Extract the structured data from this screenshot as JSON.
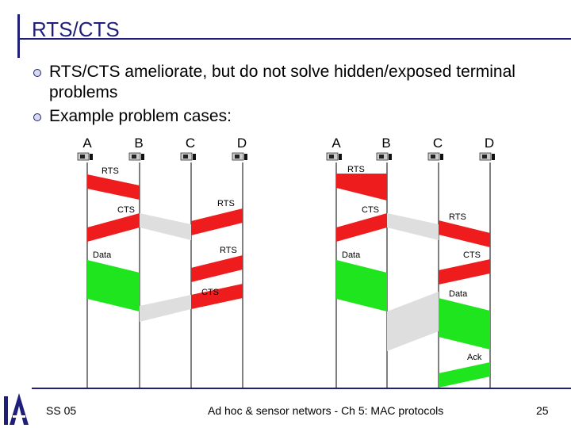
{
  "title": "RTS/CTS",
  "bullets": [
    "RTS/CTS ameliorate, but do not solve hidden/exposed terminal problems",
    "Example problem cases:"
  ],
  "diagram": {
    "nodes": [
      "A",
      "B",
      "C",
      "D"
    ],
    "labels": {
      "rts": "RTS",
      "cts": "CTS",
      "data": "Data",
      "ack": "Ack"
    },
    "colors": {
      "rts": "#ee1c1c",
      "cts_gray": "#dedede",
      "data": "#1ee51e",
      "line": "#000000"
    }
  },
  "footer": {
    "left": "SS 05",
    "center": "Ad hoc & sensor networs - Ch 5: MAC protocols",
    "page": "25"
  }
}
